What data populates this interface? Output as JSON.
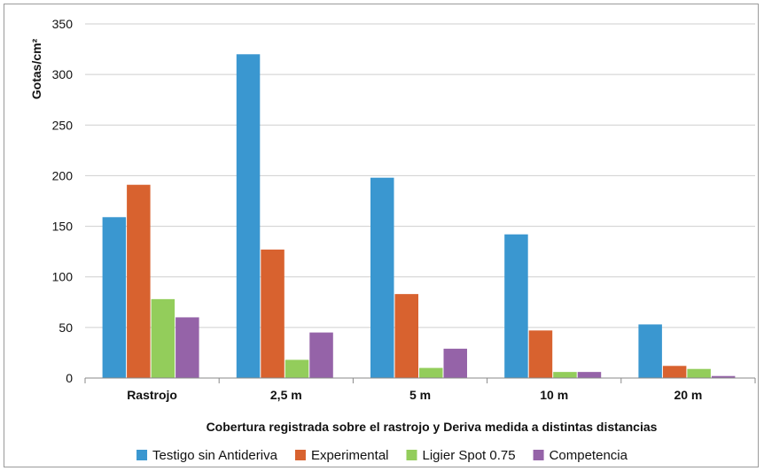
{
  "chart_data": {
    "type": "bar",
    "title": "",
    "xlabel": "Cobertura registrada sobre el rastrojo y Deriva medida a distintas distancias",
    "ylabel": "Gotas/cm²",
    "ylim": [
      0,
      350
    ],
    "yticks": [
      0,
      50,
      100,
      150,
      200,
      250,
      300,
      350
    ],
    "grid": true,
    "legend": "bottom",
    "categories": [
      "Rastrojo",
      "2,5 m",
      "5 m",
      "10 m",
      "20 m"
    ],
    "series": [
      {
        "name": "Testigo sin Antideriva",
        "color": "#3a97d0",
        "values": [
          159,
          320,
          198,
          142,
          53
        ]
      },
      {
        "name": "Experimental",
        "color": "#d8622f",
        "values": [
          191,
          127,
          83,
          47,
          12
        ]
      },
      {
        "name": "Ligier Spot 0.75",
        "color": "#93cd5b",
        "values": [
          78,
          18,
          10,
          6,
          9
        ]
      },
      {
        "name": "Competencia",
        "color": "#9563a8",
        "values": [
          60,
          45,
          29,
          6,
          2
        ]
      }
    ]
  }
}
